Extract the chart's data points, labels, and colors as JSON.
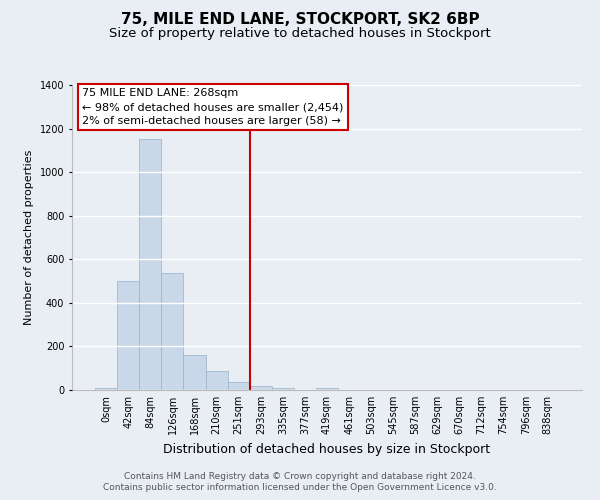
{
  "title": "75, MILE END LANE, STOCKPORT, SK2 6BP",
  "subtitle": "Size of property relative to detached houses in Stockport",
  "xlabel": "Distribution of detached houses by size in Stockport",
  "ylabel": "Number of detached properties",
  "bar_labels": [
    "0sqm",
    "42sqm",
    "84sqm",
    "126sqm",
    "168sqm",
    "210sqm",
    "251sqm",
    "293sqm",
    "335sqm",
    "377sqm",
    "419sqm",
    "461sqm",
    "503sqm",
    "545sqm",
    "587sqm",
    "629sqm",
    "670sqm",
    "712sqm",
    "754sqm",
    "796sqm",
    "838sqm"
  ],
  "bar_heights": [
    10,
    500,
    1150,
    535,
    160,
    85,
    35,
    20,
    10,
    0,
    10,
    0,
    0,
    0,
    0,
    0,
    0,
    0,
    0,
    0,
    0
  ],
  "bar_color": "#c8d8e8",
  "bar_edge_color": "#9ab0c8",
  "vline_x": 6.5,
  "vline_color": "#cc0000",
  "ylim": [
    0,
    1400
  ],
  "yticks": [
    0,
    200,
    400,
    600,
    800,
    1000,
    1200,
    1400
  ],
  "annotation_title": "75 MILE END LANE: 268sqm",
  "annotation_line1": "← 98% of detached houses are smaller (2,454)",
  "annotation_line2": "2% of semi-detached houses are larger (58) →",
  "footer1": "Contains HM Land Registry data © Crown copyright and database right 2024.",
  "footer2": "Contains public sector information licensed under the Open Government Licence v3.0.",
  "background_color": "#e8eef4",
  "plot_bg_color": "#e8eef4",
  "grid_color": "#ffffff",
  "title_fontsize": 11,
  "subtitle_fontsize": 9.5,
  "xlabel_fontsize": 9,
  "ylabel_fontsize": 8,
  "tick_fontsize": 7,
  "footer_fontsize": 6.5,
  "ann_fontsize": 8
}
